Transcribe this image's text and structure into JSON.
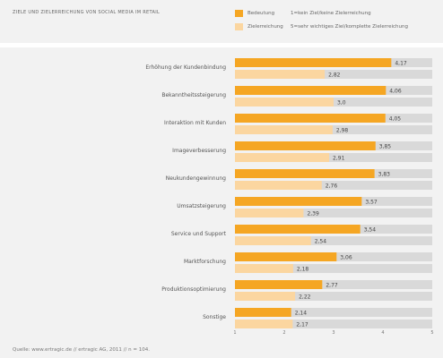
{
  "title": "ZIELE UND ZIELERREICHUNG VON SOCIAL MEDIA IM RETAIL",
  "legend": [
    {
      "label": "Bedeutung",
      "desc": "1=kein Ziel/keine Zielerreichung",
      "color": "#f5a623"
    },
    {
      "label": "Zielerreichung",
      "desc": "5=sehr wichtiges Ziel/komplette Zielerreichung",
      "color": "#fbd6a0"
    }
  ],
  "source": "Quelle: www.ertragic.de // ertragic AG, 2011 // n = 104.",
  "colors": {
    "primary": "#f5a623",
    "secondary": "#fbd6a0",
    "track": "#d9d9d9"
  },
  "chart_data": {
    "type": "bar",
    "orientation": "horizontal",
    "categories": [
      "Erhöhung der Kundenbindung",
      "Bekanntheitssteigerung",
      "Interaktion mit Kunden",
      "Imageverbesserung",
      "Neukundengewinnung",
      "Umsatzsteigerung",
      "Service und Support",
      "Marktforschung",
      "Produktionsoptimierung",
      "Sonstige"
    ],
    "series": [
      {
        "name": "Bedeutung",
        "values": [
          4.17,
          4.06,
          4.05,
          3.85,
          3.83,
          3.57,
          3.54,
          3.06,
          2.77,
          2.14
        ],
        "labels": [
          "4,17",
          "4,06",
          "4,05",
          "3,85",
          "3,83",
          "3,57",
          "3,54",
          "3,06",
          "2,77",
          "2,14"
        ]
      },
      {
        "name": "Zielerreichung",
        "values": [
          2.82,
          3.0,
          2.98,
          2.91,
          2.76,
          2.39,
          2.54,
          2.18,
          2.22,
          2.17
        ],
        "labels": [
          "2,82",
          "3,0",
          "2,98",
          "2,91",
          "2,76",
          "2,39",
          "2,54",
          "2,18",
          "2,22",
          "2,17"
        ]
      }
    ],
    "xlim": [
      1,
      5
    ],
    "xticks": [
      "1",
      "2",
      "3",
      "4",
      "5"
    ],
    "grid": false
  }
}
